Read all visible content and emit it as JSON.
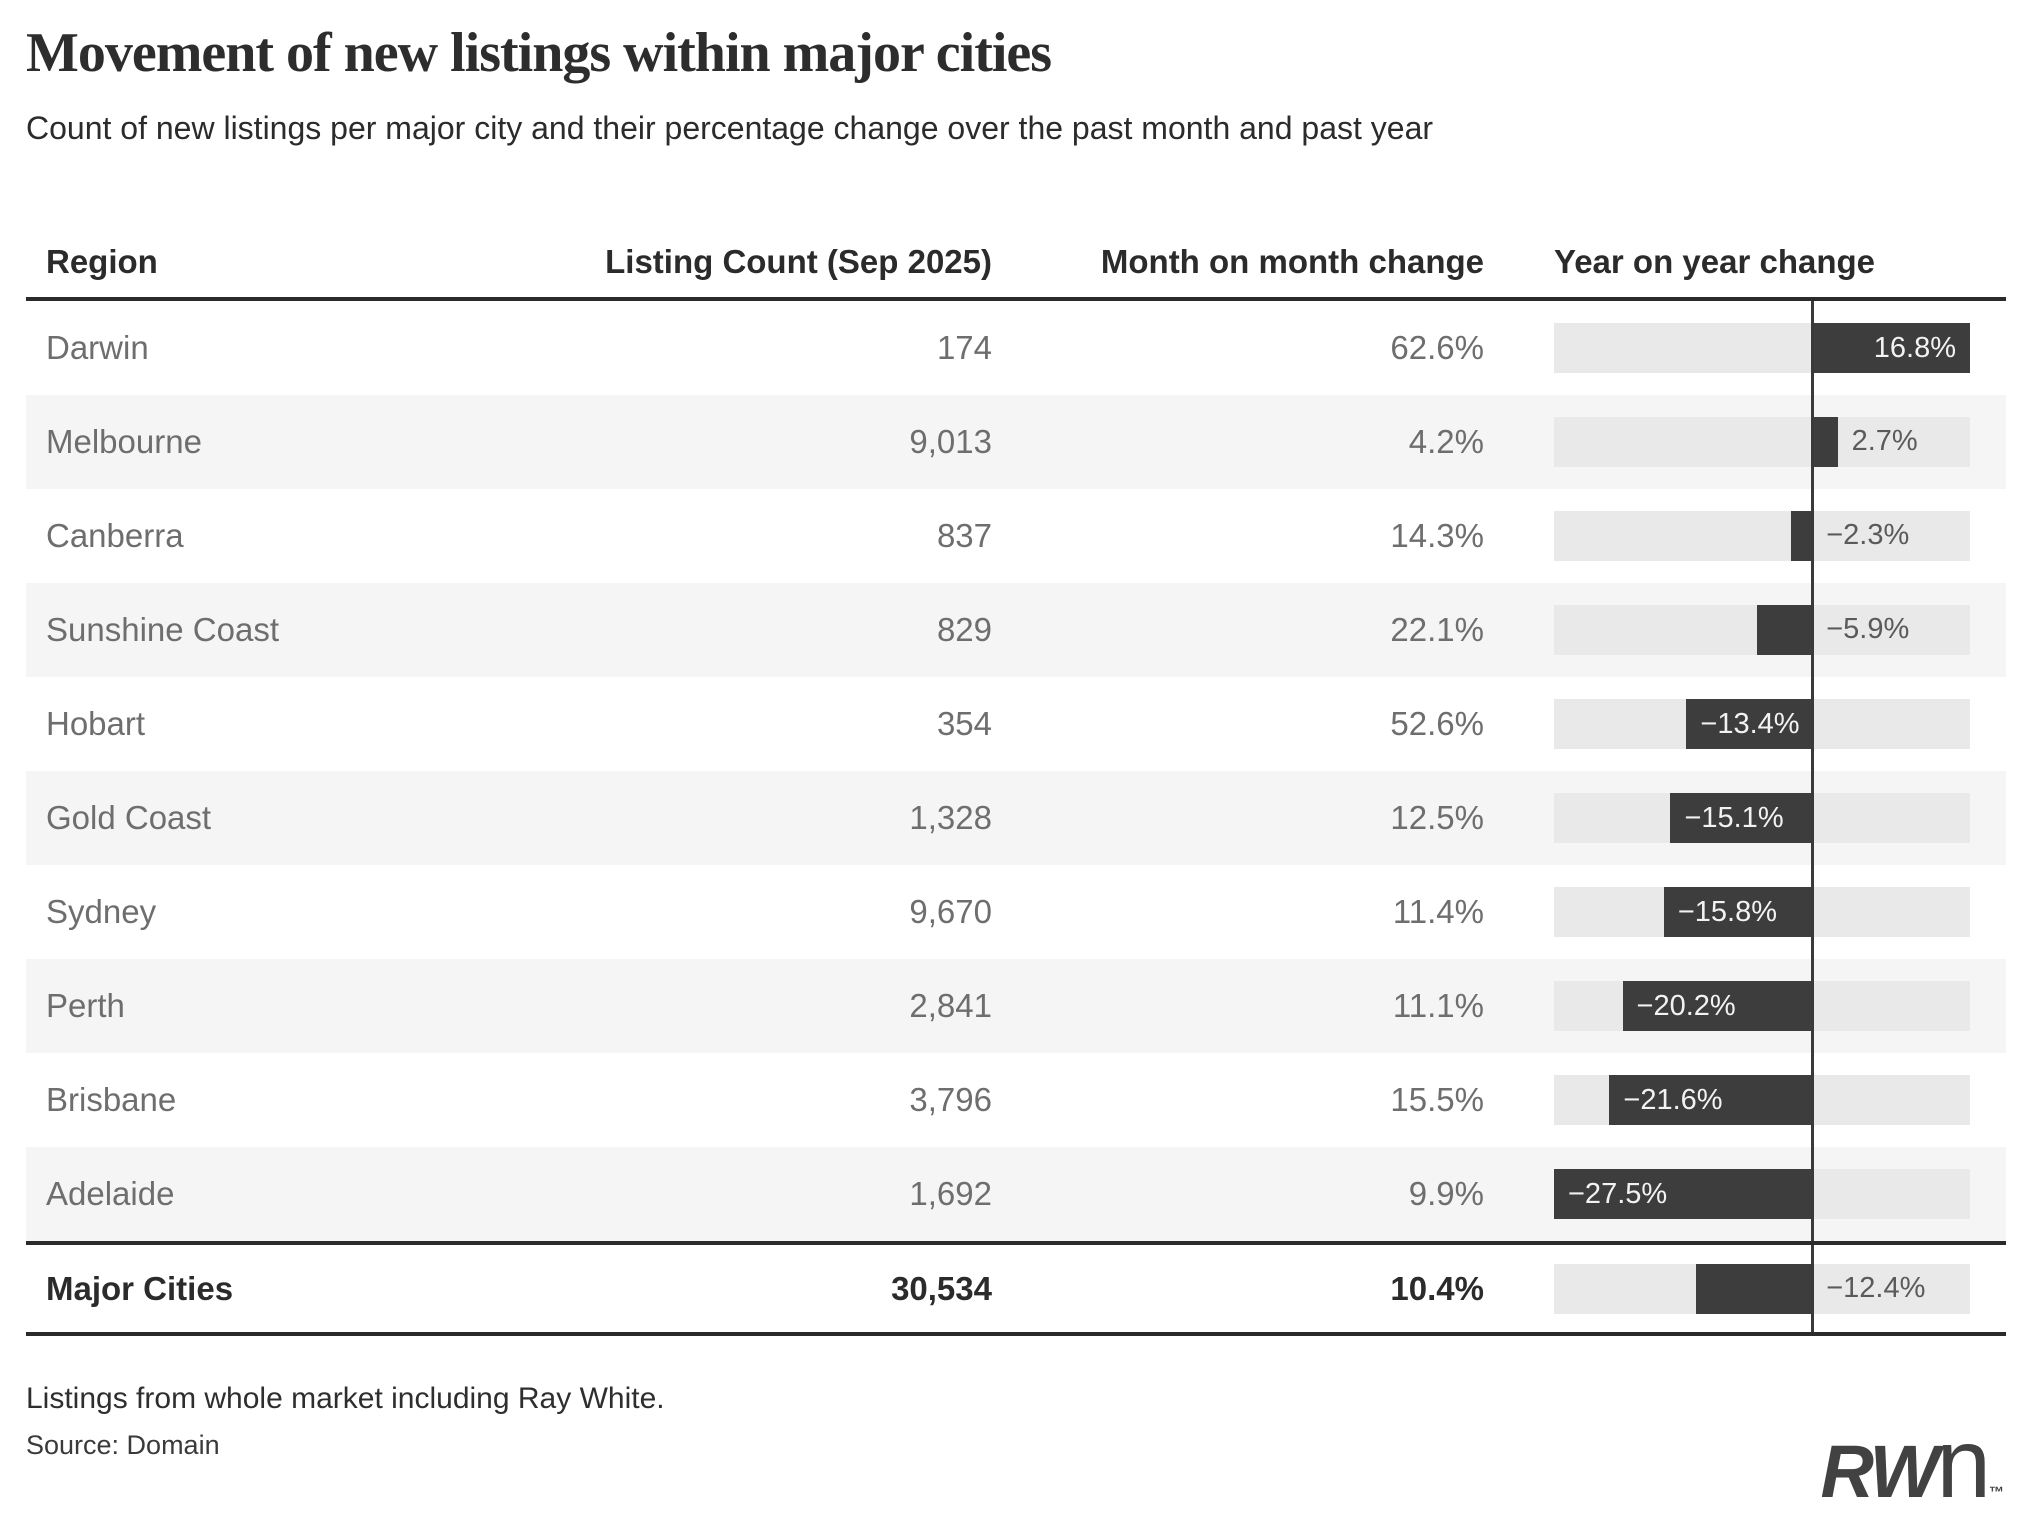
{
  "chart_data": {
    "type": "table",
    "title": "Movement of new listings within major cities",
    "subtitle": "Count of new listings per major city and their percentage change over the past month and past year",
    "columns": [
      "Region",
      "Listing Count (Sep 2025)",
      "Month on month change",
      "Year on year change"
    ],
    "rows": [
      {
        "region": "Darwin",
        "listing_count": 174,
        "mom_change_pct": 62.6,
        "yoy_change_pct": 16.8
      },
      {
        "region": "Melbourne",
        "listing_count": 9013,
        "mom_change_pct": 4.2,
        "yoy_change_pct": 2.7
      },
      {
        "region": "Canberra",
        "listing_count": 837,
        "mom_change_pct": 14.3,
        "yoy_change_pct": -2.3
      },
      {
        "region": "Sunshine Coast",
        "listing_count": 829,
        "mom_change_pct": 22.1,
        "yoy_change_pct": -5.9
      },
      {
        "region": "Hobart",
        "listing_count": 354,
        "mom_change_pct": 52.6,
        "yoy_change_pct": -13.4
      },
      {
        "region": "Gold Coast",
        "listing_count": 1328,
        "mom_change_pct": 12.5,
        "yoy_change_pct": -15.1
      },
      {
        "region": "Sydney",
        "listing_count": 9670,
        "mom_change_pct": 11.4,
        "yoy_change_pct": -15.8
      },
      {
        "region": "Perth",
        "listing_count": 2841,
        "mom_change_pct": 11.1,
        "yoy_change_pct": -20.2
      },
      {
        "region": "Brisbane",
        "listing_count": 3796,
        "mom_change_pct": 15.5,
        "yoy_change_pct": -21.6
      },
      {
        "region": "Adelaide",
        "listing_count": 1692,
        "mom_change_pct": 9.9,
        "yoy_change_pct": -27.5
      }
    ],
    "total_row": {
      "region": "Major Cities",
      "listing_count": 30534,
      "mom_change_pct": 10.4,
      "yoy_change_pct": -12.4
    },
    "yoy_bar": {
      "type": "bar",
      "orientation": "horizontal",
      "axis_range": [
        -27.5,
        16.8
      ],
      "zero_line": true,
      "label_inside_threshold_abs_pct": 13
    },
    "grid": false,
    "legend": false
  },
  "footer": {
    "note": "Listings from whole market including Ray White.",
    "source": "Source: Domain",
    "logo": {
      "bold": "RW",
      "light": "n",
      "tm": "™"
    }
  },
  "colors": {
    "bar": "#3d3d3d",
    "bar_track": "#e9e9e9",
    "row_stripe": "#f5f5f5",
    "rule": "#2b2b2b",
    "zero_line": "#3a3a3a",
    "cell_text": "#6e6e6e",
    "label_inside": "#f2f2f2",
    "label_outside": "#5a5a5a",
    "title_text": "#2d2d2d"
  }
}
